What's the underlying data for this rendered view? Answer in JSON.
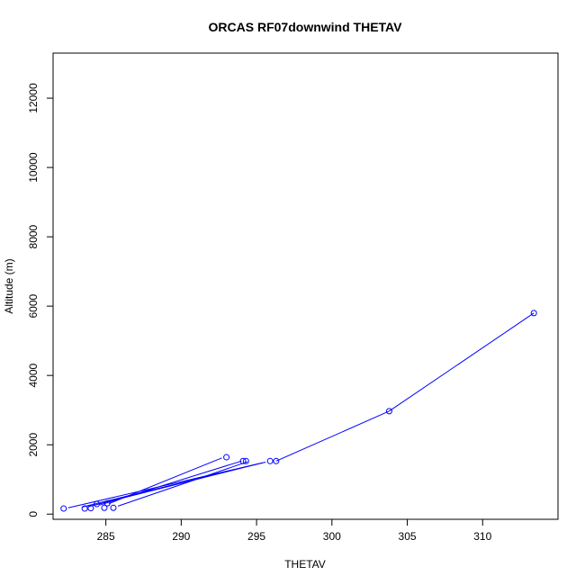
{
  "chart_data": {
    "type": "scatter",
    "title": "ORCAS RF07downwind THETAV",
    "xlabel": "THETAV",
    "ylabel": "Altitude (m)",
    "xlim": [
      281.5,
      315.0
    ],
    "ylim": [
      -150,
      13300
    ],
    "xticks": [
      285,
      290,
      295,
      300,
      305,
      310
    ],
    "yticks": [
      0,
      2000,
      4000,
      6000,
      8000,
      10000,
      12000
    ],
    "grid": false,
    "series": [
      {
        "color": "#0000ff",
        "points": [
          {
            "x": 282.2,
            "y": 160
          },
          {
            "x": 283.6,
            "y": 160
          },
          {
            "x": 284.0,
            "y": 170
          },
          {
            "x": 284.4,
            "y": 290
          },
          {
            "x": 284.9,
            "y": 180
          },
          {
            "x": 285.1,
            "y": 310
          },
          {
            "x": 285.5,
            "y": 180
          },
          {
            "x": 293.0,
            "y": 1640
          },
          {
            "x": 294.1,
            "y": 1530
          },
          {
            "x": 294.3,
            "y": 1530
          },
          {
            "x": 295.9,
            "y": 1530
          },
          {
            "x": 296.3,
            "y": 1530
          },
          {
            "x": 303.8,
            "y": 2970
          },
          {
            "x": 313.4,
            "y": 5800
          }
        ],
        "segments": [
          [
            [
              282.5,
              180
            ],
            [
              295.6,
              1500
            ]
          ],
          [
            [
              283.8,
              210
            ],
            [
              295.0,
              1440
            ]
          ],
          [
            [
              284.6,
              260
            ],
            [
              294.0,
              1530
            ]
          ],
          [
            [
              285.2,
              300
            ],
            [
              292.7,
              1620
            ]
          ],
          [
            [
              285.8,
              230
            ],
            [
              294.4,
              1510
            ]
          ],
          [
            [
              283.4,
              200
            ],
            [
              295.4,
              1480
            ]
          ],
          [
            [
              296.3,
              1530
            ],
            [
              303.8,
              2970
            ]
          ],
          [
            [
              303.8,
              2970
            ],
            [
              313.4,
              5800
            ]
          ]
        ]
      }
    ]
  }
}
